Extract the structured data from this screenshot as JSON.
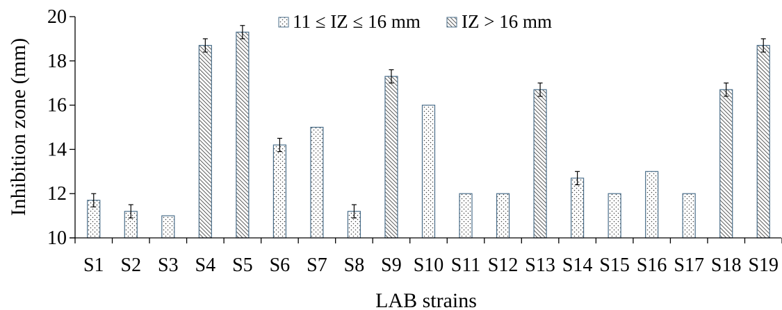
{
  "chart_data": {
    "type": "bar",
    "xlabel": "LAB strains",
    "ylabel": "Inhibition zone (mm)",
    "ylim": [
      10,
      20
    ],
    "yticks": [
      10,
      12,
      14,
      16,
      18,
      20
    ],
    "grid": false,
    "legend_position": "top",
    "categories": [
      "S1",
      "S2",
      "S3",
      "S4",
      "S5",
      "S6",
      "S7",
      "S8",
      "S9",
      "S10",
      "S11",
      "S12",
      "S13",
      "S14",
      "S15",
      "S16",
      "S17",
      "S18",
      "S19"
    ],
    "series": [
      {
        "name": "11 ≤ IZ ≤ 16 mm",
        "pattern": "dots",
        "values": [
          11.7,
          11.2,
          11,
          null,
          null,
          14.2,
          15,
          11.2,
          null,
          16,
          12,
          12,
          null,
          12.7,
          12,
          13,
          12,
          null,
          null
        ],
        "errors": [
          0.3,
          0.3,
          0,
          null,
          null,
          0.3,
          0,
          0.3,
          null,
          0,
          0,
          0,
          null,
          0.3,
          0,
          0,
          0,
          null,
          null
        ]
      },
      {
        "name": "IZ > 16 mm",
        "pattern": "hatch",
        "values": [
          null,
          null,
          null,
          18.7,
          19.3,
          null,
          null,
          null,
          17.3,
          null,
          null,
          null,
          16.7,
          null,
          null,
          null,
          null,
          16.7,
          18.7
        ],
        "errors": [
          null,
          null,
          null,
          0.3,
          0.3,
          null,
          null,
          null,
          0.3,
          null,
          null,
          null,
          0.3,
          null,
          null,
          null,
          null,
          0.3,
          0.3
        ]
      }
    ],
    "colors": {
      "bar_stroke": "#4a6e8a",
      "axis": "#000000",
      "error_bar": "#000000",
      "fill": "#ffffff"
    }
  }
}
